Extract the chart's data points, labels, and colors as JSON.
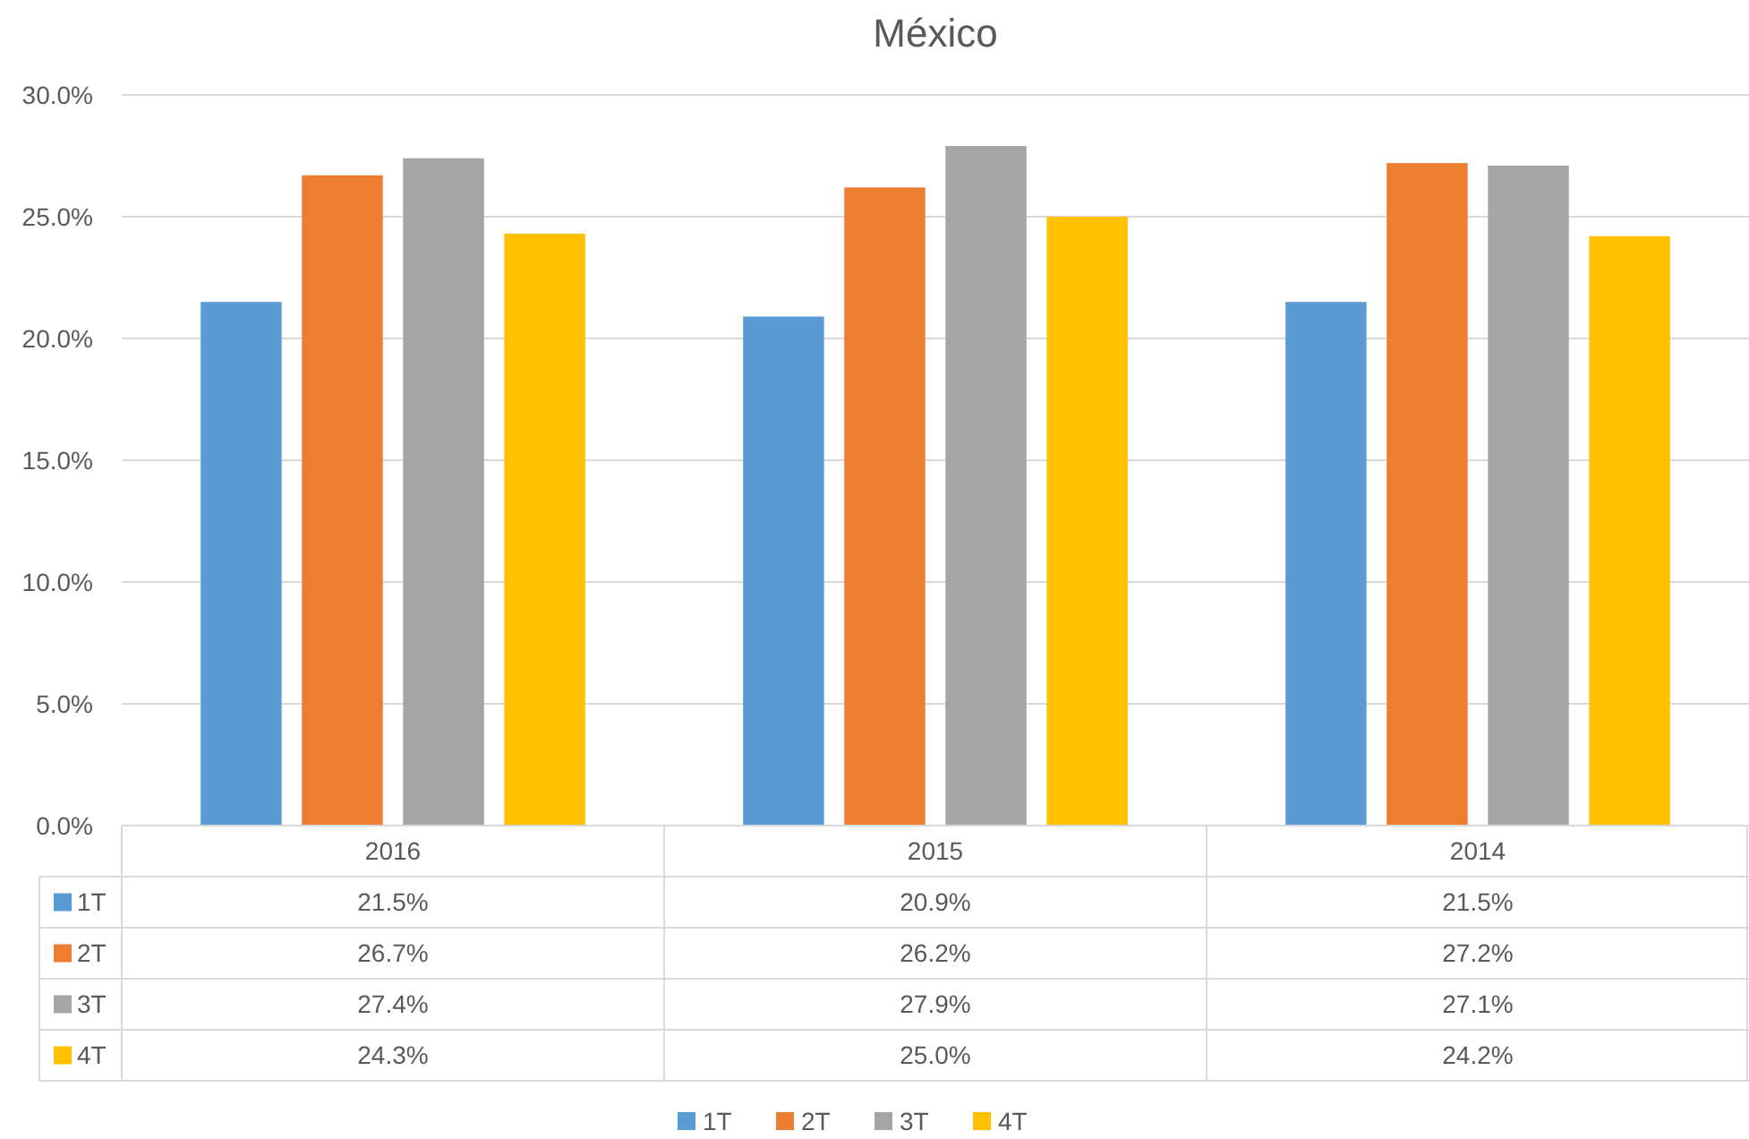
{
  "chart_data": {
    "type": "bar",
    "title": "México",
    "categories": [
      "2016",
      "2015",
      "2014"
    ],
    "series": [
      {
        "name": "1T",
        "color": "#5b9bd5",
        "values": [
          21.5,
          20.9,
          21.5
        ],
        "value_labels": [
          "21.5%",
          "20.9%",
          "21.5%"
        ]
      },
      {
        "name": "2T",
        "color": "#ed7d31",
        "values": [
          26.7,
          26.2,
          27.2
        ],
        "value_labels": [
          "26.7%",
          "26.2%",
          "27.2%"
        ]
      },
      {
        "name": "3T",
        "color": "#a5a5a5",
        "values": [
          27.4,
          27.9,
          27.1
        ],
        "value_labels": [
          "27.4%",
          "27.9%",
          "27.1%"
        ]
      },
      {
        "name": "4T",
        "color": "#ffc000",
        "values": [
          24.3,
          25.0,
          24.2
        ],
        "value_labels": [
          "24.3%",
          "25.0%",
          "24.2%"
        ]
      }
    ],
    "ylim": [
      0,
      30
    ],
    "yticks": [
      {
        "value": 0,
        "label": "0.0%"
      },
      {
        "value": 5,
        "label": "5.0%"
      },
      {
        "value": 10,
        "label": "10.0%"
      },
      {
        "value": 15,
        "label": "15.0%"
      },
      {
        "value": 20,
        "label": "20.0%"
      },
      {
        "value": 25,
        "label": "25.0%"
      },
      {
        "value": 30,
        "label": "30.0%"
      }
    ],
    "grid": "y",
    "legend": "bottom"
  }
}
